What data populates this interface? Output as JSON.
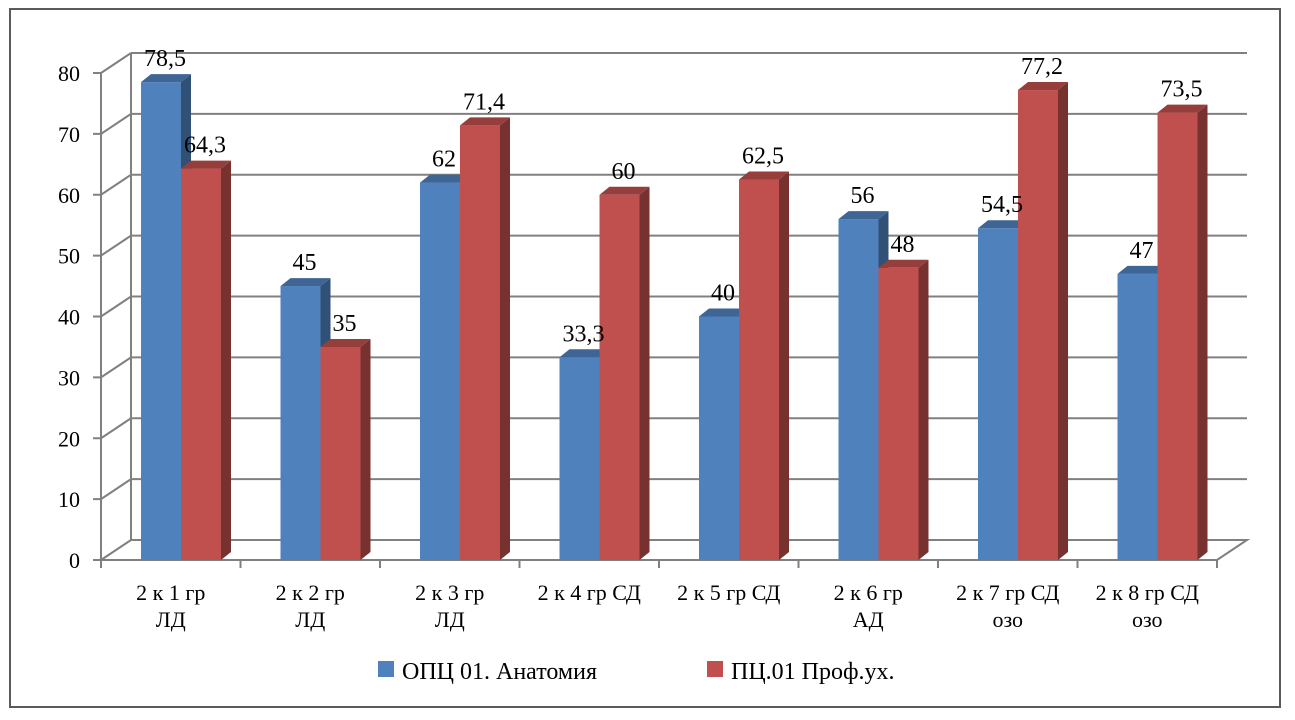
{
  "chart_data": {
    "type": "bar",
    "categories": [
      [
        "2 к 1 гр",
        "ЛД"
      ],
      [
        "2 к 2 гр",
        "ЛД"
      ],
      [
        "2 к 3 гр",
        "ЛД"
      ],
      [
        "2 к 4 гр СД"
      ],
      [
        "2 к 5 гр СД"
      ],
      [
        "2 к 6 гр",
        "АД"
      ],
      [
        "2 к 7 гр СД",
        "озо"
      ],
      [
        "2 к 8 гр СД",
        "озо"
      ]
    ],
    "series": [
      {
        "name": "ОПЦ 01. Анатомия",
        "color": "#4f81bd",
        "values": [
          78.5,
          45,
          62,
          33.3,
          40,
          56,
          54.5,
          47
        ],
        "labels": [
          "78,5",
          "45",
          "62",
          "33,3",
          "40",
          "56",
          "54,5",
          "47"
        ]
      },
      {
        "name": "ПЦ.01 Проф.ух.",
        "color": "#c0504d",
        "values": [
          64.3,
          35,
          71.4,
          60,
          62.5,
          48,
          77.2,
          73.5
        ],
        "labels": [
          "64,3",
          "35",
          "71,4",
          "60",
          "62,5",
          "48",
          "77,2",
          "73,5"
        ]
      }
    ],
    "yticks": [
      "0",
      "10",
      "20",
      "30",
      "40",
      "50",
      "60",
      "70",
      "80"
    ],
    "ylim": [
      0,
      80
    ],
    "grid": true,
    "legend_position": "bottom",
    "title": "",
    "xlabel": "",
    "ylabel": ""
  }
}
